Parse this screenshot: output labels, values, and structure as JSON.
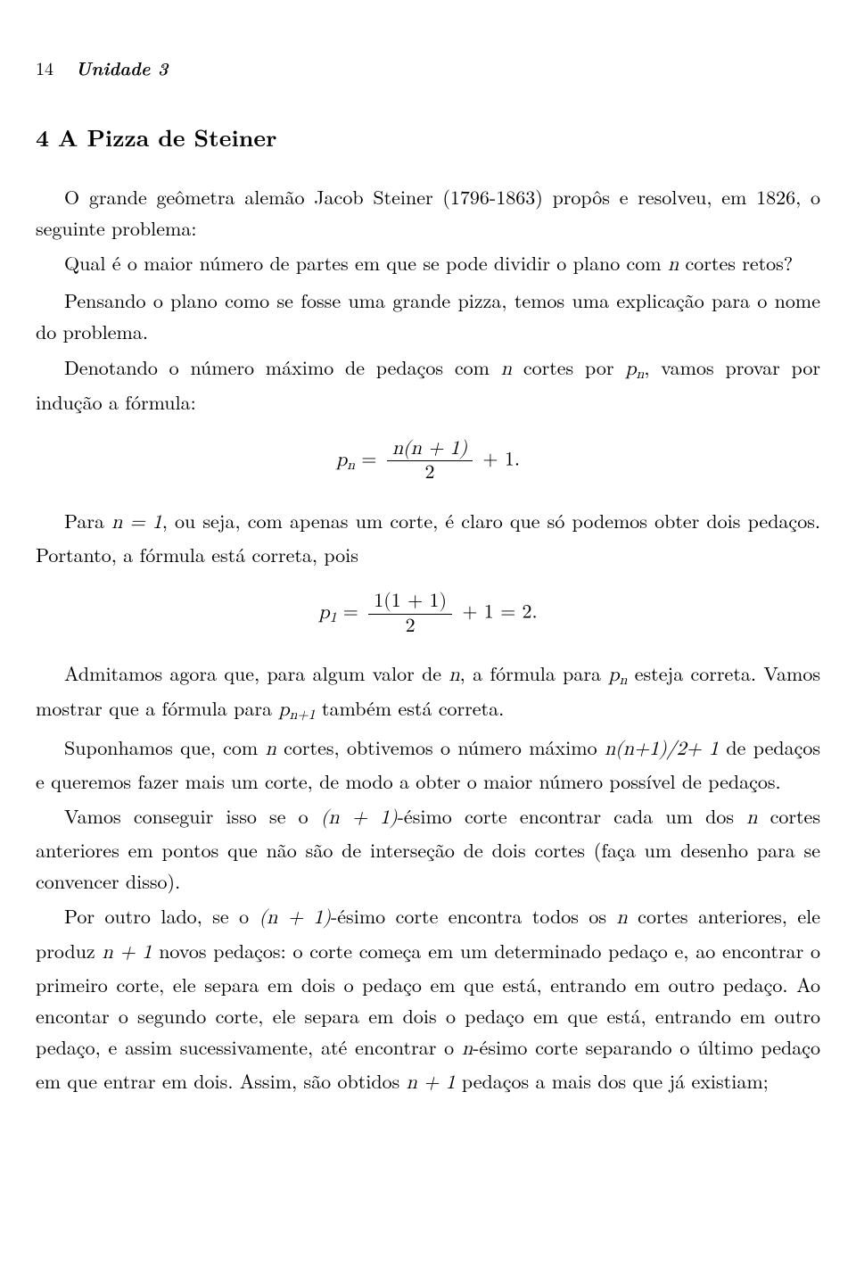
{
  "header": {
    "page_number": "14",
    "unit_label": "Unidade 3"
  },
  "section_title": "4 A Pizza de Steiner",
  "p1": "O grande geômetra alemão Jacob Steiner (1796-1863) propôs e resolveu, em 1826, o seguinte problema:",
  "p2_pre": "Qual é o maior número de partes em que se pode dividir o plano com ",
  "p2_n": "n",
  "p2_post": " cortes retos?",
  "p3": "Pensando o plano como se fosse uma grande pizza, temos uma explicação para o nome do problema.",
  "p4_pre": "Denotando o número máximo de pedaços com ",
  "p4_n": "n",
  "p4_mid": " cortes por ",
  "p4_pn": "p",
  "p4_sub": "n",
  "p4_post": ", vamos provar por indução a fórmula:",
  "eq1": {
    "lhs_p": "p",
    "lhs_sub": "n",
    "eq": " = ",
    "num": "n(n + 1)",
    "den": "2",
    "tail": " + 1."
  },
  "p5_pre": "Para ",
  "p5_n": "n = 1",
  "p5_post": ", ou seja, com apenas um corte, é claro que só podemos obter dois pedaços. Portanto, a fórmula está correta, pois",
  "eq2": {
    "lhs_p": "p",
    "lhs_sub": "1",
    "eq": " = ",
    "num": "1(1 + 1)",
    "den": "2",
    "tail": " + 1 = 2."
  },
  "p6_pre": "Admitamos agora que, para algum valor de ",
  "p6_n": "n",
  "p6_mid": ", a fórmula para ",
  "p6_pn": "p",
  "p6_sub": "n",
  "p6_mid2": " esteja correta. Vamos mostrar que a fórmula para ",
  "p6_pn1": "p",
  "p6_sub1": "n+1",
  "p6_post": " também está correta.",
  "p7_pre": "Suponhamos que, com ",
  "p7_n": "n",
  "p7_mid": " cortes, obtivemos o número máximo ",
  "p7_expr": "n(n+1)/2+ 1",
  "p7_post": " de pedaços e queremos fazer mais um corte, de modo a obter o maior número possível de pedaços.",
  "p8_pre": "Vamos conseguir isso se o ",
  "p8_expr": "(n + 1)",
  "p8_mid": "-ésimo corte encontrar cada um dos ",
  "p8_n": "n",
  "p8_post": " cortes anteriores em pontos que não são de interseção de dois cortes (faça um desenho para se convencer disso).",
  "p9_pre": "Por outro lado, se o ",
  "p9_expr": "(n + 1)",
  "p9_mid": "-ésimo corte encontra todos os ",
  "p9_n": "n",
  "p9_mid2": " cortes anteriores, ele produz ",
  "p9_np1": "n + 1",
  "p9_mid3": " novos pedaços: o corte começa em um determinado pedaço e, ao encontrar o primeiro corte, ele separa em dois o pedaço em que está, entrando em outro pedaço. Ao encontar o segundo corte, ele separa em dois o pedaço em que está, entrando em outro pedaço, e assim sucessivamente, até encontrar o ",
  "p9_nth": "n",
  "p9_mid4": "-ésimo corte separando o último pedaço em que entrar em dois. Assim, são obtidos ",
  "p9_np1b": "n + 1",
  "p9_post": " pedaços a mais dos que já existiam;"
}
